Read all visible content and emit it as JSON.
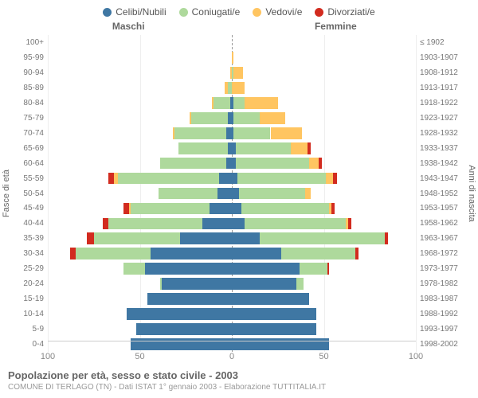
{
  "chart": {
    "type": "population-pyramid",
    "legend": [
      {
        "label": "Celibi/Nubili",
        "color": "#3f77a3"
      },
      {
        "label": "Coniugati/e",
        "color": "#aed99c"
      },
      {
        "label": "Vedovi/e",
        "color": "#ffc561"
      },
      {
        "label": "Divorziati/e",
        "color": "#d22b1f"
      }
    ],
    "column_left": "Maschi",
    "column_right": "Femmine",
    "y_left_title": "Fasce di età",
    "y_right_title": "Anni di nascita",
    "x_max": 100,
    "x_ticks": [
      100,
      50,
      0,
      50,
      100
    ],
    "background_color": "#ffffff",
    "grid_color": "#eeeeee",
    "axis_color": "#cccccc",
    "font_family": "Arial",
    "rows": [
      {
        "age": "100+",
        "birth": "≤ 1902",
        "m": [
          0,
          0,
          0,
          0
        ],
        "f": [
          0,
          0,
          0,
          0
        ]
      },
      {
        "age": "95-99",
        "birth": "1903-1907",
        "m": [
          0,
          0,
          0,
          0
        ],
        "f": [
          0,
          0,
          1,
          0
        ]
      },
      {
        "age": "90-94",
        "birth": "1908-1912",
        "m": [
          0,
          0,
          1,
          0
        ],
        "f": [
          0,
          1,
          5,
          0
        ]
      },
      {
        "age": "85-89",
        "birth": "1913-1917",
        "m": [
          0,
          2,
          2,
          0
        ],
        "f": [
          0,
          0,
          7,
          0
        ]
      },
      {
        "age": "80-84",
        "birth": "1918-1922",
        "m": [
          1,
          9,
          1,
          0
        ],
        "f": [
          1,
          6,
          18,
          0
        ]
      },
      {
        "age": "75-79",
        "birth": "1923-1927",
        "m": [
          2,
          20,
          1,
          0
        ],
        "f": [
          1,
          14,
          14,
          0
        ]
      },
      {
        "age": "70-74",
        "birth": "1928-1932",
        "m": [
          3,
          28,
          1,
          0
        ],
        "f": [
          1,
          20,
          17,
          0
        ]
      },
      {
        "age": "65-69",
        "birth": "1933-1937",
        "m": [
          2,
          27,
          0,
          0
        ],
        "f": [
          2,
          30,
          9,
          2
        ]
      },
      {
        "age": "60-64",
        "birth": "1938-1942",
        "m": [
          3,
          36,
          0,
          0
        ],
        "f": [
          2,
          40,
          5,
          2
        ]
      },
      {
        "age": "55-59",
        "birth": "1943-1947",
        "m": [
          7,
          55,
          2,
          3
        ],
        "f": [
          3,
          48,
          4,
          2
        ]
      },
      {
        "age": "50-54",
        "birth": "1948-1952",
        "m": [
          8,
          32,
          0,
          0
        ],
        "f": [
          4,
          36,
          3,
          0
        ]
      },
      {
        "age": "45-49",
        "birth": "1953-1957",
        "m": [
          12,
          43,
          1,
          3
        ],
        "f": [
          5,
          48,
          1,
          2
        ]
      },
      {
        "age": "40-44",
        "birth": "1958-1962",
        "m": [
          16,
          51,
          0,
          3
        ],
        "f": [
          7,
          55,
          1,
          2
        ]
      },
      {
        "age": "35-39",
        "birth": "1963-1967",
        "m": [
          28,
          47,
          0,
          4
        ],
        "f": [
          15,
          68,
          0,
          2
        ]
      },
      {
        "age": "30-34",
        "birth": "1968-1972",
        "m": [
          44,
          41,
          0,
          3
        ],
        "f": [
          27,
          40,
          0,
          2
        ]
      },
      {
        "age": "25-29",
        "birth": "1973-1977",
        "m": [
          47,
          12,
          0,
          0
        ],
        "f": [
          37,
          15,
          0,
          1
        ]
      },
      {
        "age": "20-24",
        "birth": "1978-1982",
        "m": [
          38,
          1,
          0,
          0
        ],
        "f": [
          35,
          4,
          0,
          0
        ]
      },
      {
        "age": "15-19",
        "birth": "1983-1987",
        "m": [
          46,
          0,
          0,
          0
        ],
        "f": [
          42,
          0,
          0,
          0
        ]
      },
      {
        "age": "10-14",
        "birth": "1988-1992",
        "m": [
          57,
          0,
          0,
          0
        ],
        "f": [
          46,
          0,
          0,
          0
        ]
      },
      {
        "age": "5-9",
        "birth": "1993-1997",
        "m": [
          52,
          0,
          0,
          0
        ],
        "f": [
          46,
          0,
          0,
          0
        ]
      },
      {
        "age": "0-4",
        "birth": "1998-2002",
        "m": [
          55,
          0,
          0,
          0
        ],
        "f": [
          53,
          0,
          0,
          0
        ]
      }
    ]
  },
  "footer": {
    "title": "Popolazione per età, sesso e stato civile - 2003",
    "subtitle": "COMUNE DI TERLAGO (TN) - Dati ISTAT 1° gennaio 2003 - Elaborazione TUTTITALIA.IT"
  }
}
